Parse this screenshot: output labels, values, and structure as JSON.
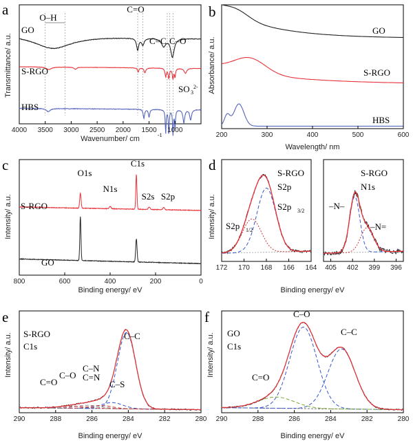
{
  "chart_data": [
    {
      "id": "a",
      "panel_label": "a",
      "type": "line",
      "xlabel": "Wavenumber/ cm",
      "xlabel_sup": "-1",
      "ylabel": "Transmittance/ a.u.",
      "xlim": [
        4000,
        500
      ],
      "ylim": [
        0,
        100
      ],
      "xticks": [
        4000,
        3500,
        3000,
        2500,
        2000,
        1500,
        1000
      ],
      "series": [
        {
          "name": "GO",
          "color": "#222222",
          "offset": 75,
          "amp": 22,
          "base": 0.15,
          "peaks": [
            [
              3350,
              450,
              0.5
            ],
            [
              1720,
              25,
              0.45
            ],
            [
              1620,
              30,
              0.25
            ],
            [
              1220,
              50,
              0.3
            ],
            [
              1050,
              40,
              0.7
            ]
          ]
        },
        {
          "name": "S-RGO",
          "color": "#e8333a",
          "offset": 48,
          "amp": 14,
          "base": 0.1,
          "peaks": [
            [
              3430,
              60,
              0.15
            ],
            [
              2920,
              30,
              0.12
            ],
            [
              1710,
              15,
              0.25
            ],
            [
              1580,
              20,
              0.3
            ],
            [
              1180,
              15,
              0.5
            ],
            [
              1120,
              15,
              0.6
            ],
            [
              1040,
              15,
              0.6
            ],
            [
              1000,
              12,
              0.5
            ],
            [
              800,
              30,
              0.3
            ]
          ]
        },
        {
          "name": "HBS",
          "color": "#5566bb",
          "offset": 13,
          "amp": 22,
          "base": 0.05,
          "peaks": [
            [
              3440,
              40,
              0.12
            ],
            [
              1600,
              15,
              0.35
            ],
            [
              1500,
              15,
              0.3
            ],
            [
              1180,
              10,
              0.9
            ],
            [
              1120,
              10,
              0.95
            ],
            [
              1040,
              10,
              0.95
            ],
            [
              1000,
              10,
              0.7
            ],
            [
              830,
              20,
              0.5
            ],
            [
              700,
              20,
              0.4
            ]
          ]
        }
      ],
      "labels": [
        "GO",
        "S-RGO",
        "HBS"
      ],
      "annotations": [
        "O–H",
        "C=O",
        "C=C",
        "C–O",
        "SO",
        "3",
        "2-"
      ]
    },
    {
      "id": "b",
      "panel_label": "b",
      "type": "line",
      "xlabel": "Wavelength/ nm",
      "ylabel": "Absorbance/ a.u.",
      "xlim": [
        200,
        600
      ],
      "ylim": [
        0,
        100
      ],
      "xticks": [
        200,
        300,
        400,
        500,
        600
      ],
      "series": [
        {
          "name": "GO",
          "color": "#222222",
          "base": 73,
          "decay": 24,
          "decay_len": 110,
          "peaks": [
            [
              232,
              28,
              6
            ]
          ]
        },
        {
          "name": "S-RGO",
          "color": "#e8333a",
          "base": 36,
          "decay": 14,
          "decay_len": 150,
          "peaks": [
            [
              262,
              35,
              12
            ]
          ]
        },
        {
          "name": "HBS",
          "color": "#5566bb",
          "base": 2,
          "decay": 0,
          "decay_len": 100,
          "peaks": [
            [
              238,
              11,
              18
            ],
            [
              212,
              6,
              9
            ]
          ]
        }
      ],
      "labels": [
        "GO",
        "S-RGO",
        "HBS"
      ]
    },
    {
      "id": "c",
      "panel_label": "c",
      "type": "line",
      "xlabel": "Binding energy/ eV",
      "ylabel": "Intensity/ a.u.",
      "xlim": [
        800,
        0
      ],
      "ylim": [
        0,
        100
      ],
      "xticks": [
        800,
        600,
        400,
        200,
        0
      ],
      "series": [
        {
          "name": "S-RGO",
          "color": "#e8333a",
          "offset": 56,
          "step": 3,
          "peaks": [
            [
              531,
              3,
              13
            ],
            [
              400,
              4,
              2
            ],
            [
              284.5,
              2.5,
              30
            ],
            [
              228,
              4,
              2
            ],
            [
              164,
              4,
              2
            ]
          ]
        },
        {
          "name": "GO",
          "color": "#222222",
          "offset": 10,
          "step": 4,
          "peaks": [
            [
              531,
              2.5,
              38
            ],
            [
              284.5,
              3,
              20
            ]
          ]
        }
      ],
      "labels": [
        "S-RGO",
        "GO"
      ],
      "peak_labels": [
        "O1s",
        "N1s",
        "C1s",
        "S2s",
        "S2p"
      ]
    },
    {
      "id": "d",
      "panel_label": "d",
      "type": "line",
      "xlabel": "Binding energy/ eV",
      "ylabel": "Intensity/ a.u.",
      "segments": [
        {
          "xlim": [
            172,
            164
          ],
          "xticks": [
            172,
            170,
            168,
            166,
            164
          ],
          "components": [
            [
              168.0,
              0.85,
              63
            ],
            [
              169.3,
              0.85,
              33
            ]
          ],
          "noise": 1.2
        },
        {
          "xlim": [
            406,
            395
          ],
          "xticks": [
            405,
            402,
            399,
            396
          ],
          "components": [
            [
              401.7,
              0.7,
              55
            ],
            [
              400.0,
              0.9,
              24
            ]
          ],
          "noise": 2.4
        }
      ],
      "ylim": [
        0,
        100
      ],
      "labels": [
        "S-RGO",
        "S2p",
        "S2p",
        "3/2",
        "S2p",
        "1/2",
        "S-RGO",
        "N1s",
        "–N–",
        "–N="
      ]
    },
    {
      "id": "e",
      "panel_label": "e",
      "type": "line",
      "xlabel": "Binding energy/ eV",
      "ylabel": "Intensity/ a.u.",
      "xlim": [
        290,
        280
      ],
      "ylim": [
        0,
        100
      ],
      "xticks": [
        290,
        288,
        286,
        284,
        282,
        280
      ],
      "components": [
        [
          284.1,
          0.5,
          75,
          "#3355cc"
        ],
        [
          284.9,
          0.6,
          6,
          "#3355cc"
        ],
        [
          285.5,
          0.6,
          3,
          "#cc3333"
        ],
        [
          286.2,
          0.7,
          3,
          "#888888"
        ],
        [
          287.0,
          0.8,
          2,
          "#cc3333"
        ]
      ],
      "labels": [
        "S-RGO",
        "C1s",
        "C–C",
        "C–N",
        "C=N",
        "C–O",
        "C=O",
        "C–S"
      ]
    },
    {
      "id": "f",
      "panel_label": "f",
      "type": "line",
      "xlabel": "Binding energy/ eV",
      "ylabel": "Intensity/ a.u.",
      "xlim": [
        290,
        280
      ],
      "ylim": [
        0,
        100
      ],
      "xticks": [
        290,
        288,
        286,
        284,
        282,
        280
      ],
      "components": [
        [
          285.5,
          0.75,
          80,
          "#3355cc"
        ],
        [
          283.4,
          0.75,
          59,
          "#3355cc"
        ],
        [
          287.0,
          1.0,
          11,
          "#77aa33"
        ]
      ],
      "labels": [
        "GO",
        "C1s",
        "C–O",
        "C–C",
        "C=O"
      ]
    }
  ]
}
